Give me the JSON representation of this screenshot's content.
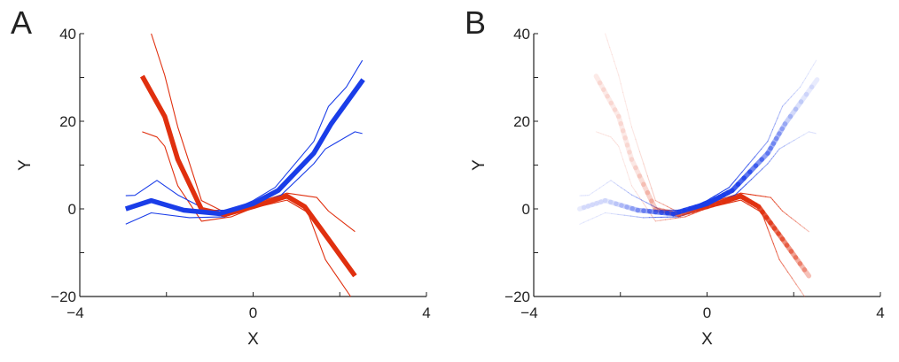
{
  "chart_data": [
    {
      "panel_label": "A",
      "type": "line",
      "xlabel": "X",
      "ylabel": "Y",
      "xlim": [
        -4,
        4
      ],
      "ylim": [
        -20,
        40
      ],
      "xticks": [
        -4,
        -2,
        0,
        2,
        4
      ],
      "xtick_labels": [
        "−4",
        "",
        "0",
        "",
        "4"
      ],
      "yticks": [
        -20,
        -10,
        0,
        10,
        20,
        30,
        40
      ],
      "ytick_labels": [
        "−20",
        "",
        "0",
        "",
        "20",
        "",
        "40"
      ],
      "grid": false,
      "shading": "solid",
      "series": [
        {
          "color": "#e0300f",
          "style": "thin",
          "points": [
            [
              -2.35,
              40
            ],
            [
              -2.04,
              30.5
            ],
            [
              -1.74,
              18.7
            ],
            [
              -1.19,
              1.9
            ],
            [
              -0.65,
              -0.8
            ],
            [
              0,
              1.2
            ],
            [
              0.78,
              3.6
            ],
            [
              1.47,
              2.6
            ],
            [
              1.74,
              -0.5
            ],
            [
              2.35,
              -5.2
            ]
          ]
        },
        {
          "color": "#e0300f",
          "style": "thin",
          "points": [
            [
              -2.56,
              17.6
            ],
            [
              -2.22,
              16.4
            ],
            [
              -2.04,
              14.3
            ],
            [
              -1.74,
              5.3
            ],
            [
              -1.19,
              -2.8
            ],
            [
              -0.5,
              -1.8
            ],
            [
              0,
              0.2
            ],
            [
              0.78,
              2.0
            ],
            [
              1.26,
              -0.8
            ],
            [
              1.67,
              -11.6
            ],
            [
              2.25,
              -20
            ]
          ]
        },
        {
          "color": "#1a3de8",
          "style": "thin",
          "points": [
            [
              -2.94,
              3
            ],
            [
              -2.73,
              3.1
            ],
            [
              -2.22,
              6.5
            ],
            [
              -1.74,
              3.2
            ],
            [
              -1.06,
              -0.3
            ],
            [
              -0.5,
              -0.3
            ],
            [
              0,
              1.9
            ],
            [
              0.51,
              4.9
            ],
            [
              1.4,
              15.4
            ],
            [
              1.74,
              23.4
            ],
            [
              2.15,
              27.8
            ],
            [
              2.52,
              33.9
            ]
          ]
        },
        {
          "color": "#1a3de8",
          "style": "thin",
          "points": [
            [
              -2.94,
              -3.5
            ],
            [
              -2.35,
              -0.9
            ],
            [
              -1.47,
              -2
            ],
            [
              -0.65,
              -1.8
            ],
            [
              0,
              0.5
            ],
            [
              0.65,
              3.2
            ],
            [
              1.4,
              10.3
            ],
            [
              1.67,
              13.7
            ],
            [
              2.35,
              17.6
            ],
            [
              2.52,
              17.2
            ]
          ]
        },
        {
          "color": "#e0300f",
          "style": "thick",
          "points": [
            [
              -2.56,
              30.3
            ],
            [
              -2.04,
              21.1
            ],
            [
              -1.74,
              11.3
            ],
            [
              -1.19,
              -0.1
            ],
            [
              -0.65,
              -1.3
            ],
            [
              0,
              0.5
            ],
            [
              0.78,
              2.9
            ],
            [
              1.19,
              0.5
            ],
            [
              1.74,
              -6.9
            ],
            [
              2.35,
              -15.3
            ]
          ]
        },
        {
          "color": "#1a3de8",
          "style": "thick",
          "points": [
            [
              -2.94,
              0
            ],
            [
              -2.35,
              1.9
            ],
            [
              -1.6,
              -0.3
            ],
            [
              -0.78,
              -1.1
            ],
            [
              0,
              1.2
            ],
            [
              0.58,
              4.2
            ],
            [
              1.4,
              12.7
            ],
            [
              1.8,
              19.4
            ],
            [
              2.54,
              29.5
            ]
          ]
        }
      ]
    },
    {
      "panel_label": "B",
      "type": "line",
      "xlabel": "X",
      "ylabel": "Y",
      "xlim": [
        -4,
        4
      ],
      "ylim": [
        -20,
        40
      ],
      "xticks": [
        -4,
        -2,
        0,
        2,
        4
      ],
      "xtick_labels": [
        "−4",
        "",
        "0",
        "",
        "4"
      ],
      "yticks": [
        -20,
        -10,
        0,
        10,
        20,
        30,
        40
      ],
      "ytick_labels": [
        "−20",
        "",
        "0",
        "",
        "20",
        "",
        "40"
      ],
      "grid": false,
      "shading": "opacity fades away from center",
      "series": "same as panel A"
    }
  ]
}
